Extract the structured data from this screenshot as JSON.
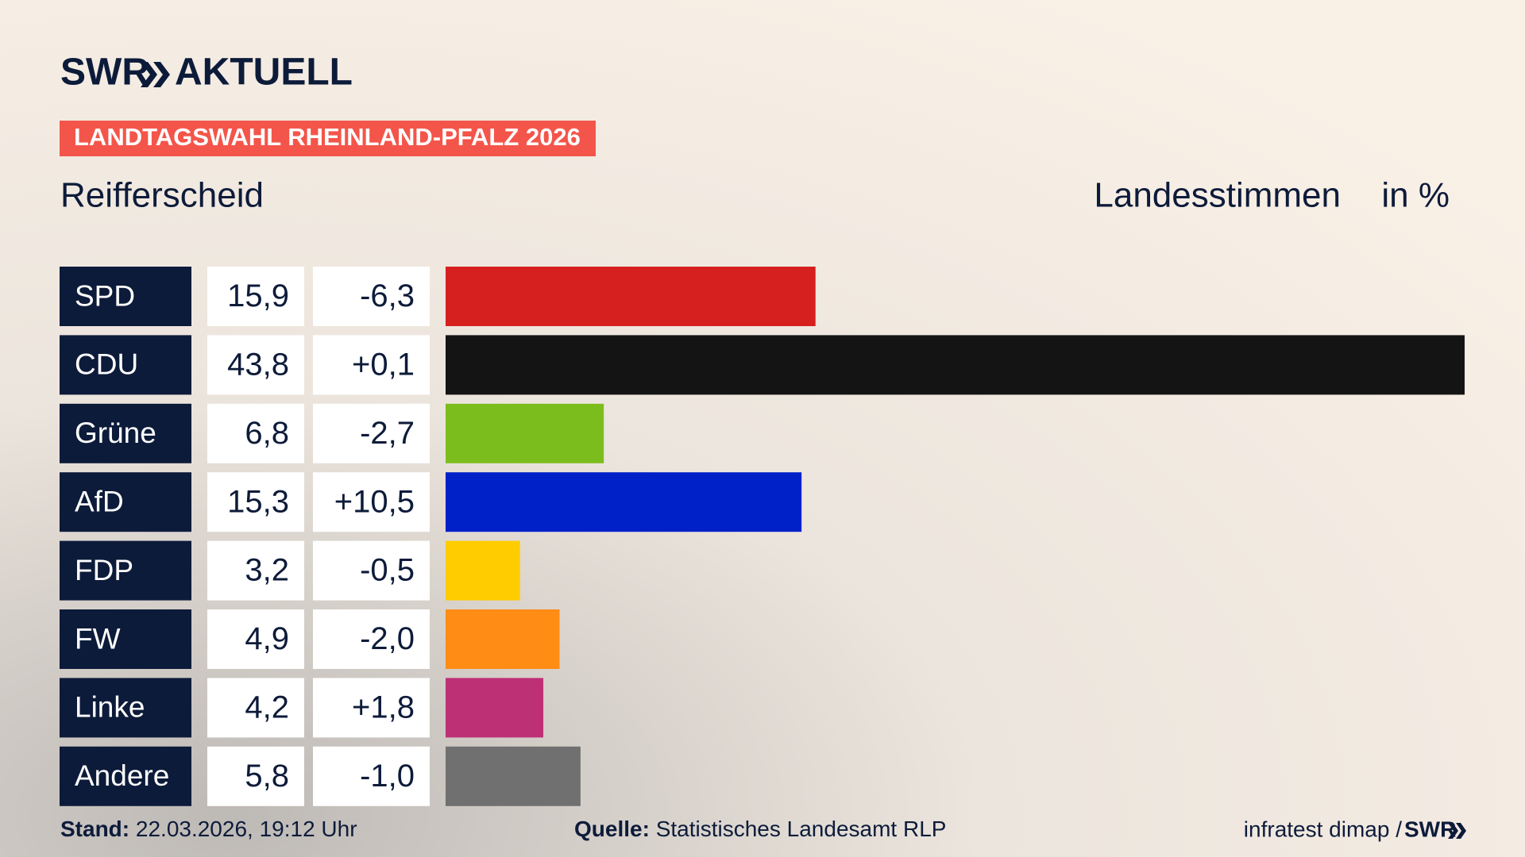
{
  "chart_data": {
    "type": "bar",
    "brand": "SWR",
    "brand_suffix": "AKTUELL",
    "title": "LANDTAGSWAHL RHEINLAND-PFALZ 2026",
    "subtitle": "Reifferscheid",
    "measure": "Landesstimmen",
    "unit": "in %",
    "categories": [
      "SPD",
      "CDU",
      "Grüne",
      "AfD",
      "FDP",
      "FW",
      "Linke",
      "Andere"
    ],
    "values": [
      15.9,
      43.8,
      6.8,
      15.3,
      3.2,
      4.9,
      4.2,
      5.8
    ],
    "value_labels": [
      "15,9",
      "43,8",
      "6,8",
      "15,3",
      "3,2",
      "4,9",
      "4,2",
      "5,8"
    ],
    "changes": [
      -6.3,
      0.1,
      -2.7,
      10.5,
      -0.5,
      -2.0,
      1.8,
      -1.0
    ],
    "change_labels": [
      "-6,3",
      "+0,1",
      "-2,7",
      "+10,5",
      "-0,5",
      "-2,0",
      "+1,8",
      "-1,0"
    ],
    "colors": [
      "#d62020",
      "#141414",
      "#7cbd1e",
      "#0020c8",
      "#ffcc00",
      "#ff8c14",
      "#be3075",
      "#707070"
    ],
    "stand_label": "Stand:",
    "stand": "22.03.2026, 19:12 Uhr",
    "source_label": "Quelle:",
    "source": "Statistisches Landesamt RLP",
    "credit": "infratest dimap /",
    "credit_logo": "SWR"
  }
}
